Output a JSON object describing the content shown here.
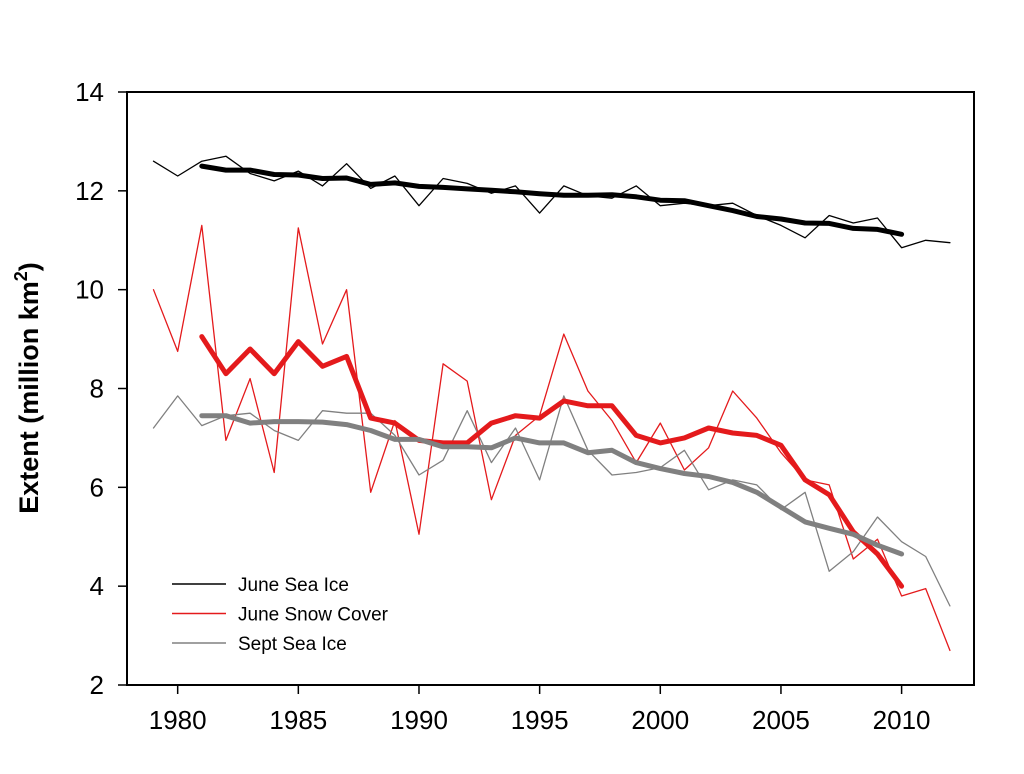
{
  "chart_data": {
    "type": "line",
    "title": "",
    "xlabel": "",
    "ylabel": "Extent  (million km",
    "ylabel_sup": "2",
    "ylabel_close": ")",
    "xlim": [
      1977.9,
      2013.0
    ],
    "ylim": [
      2,
      14
    ],
    "xticks": [
      1980,
      1985,
      1990,
      1995,
      2000,
      2005,
      2010
    ],
    "yticks": [
      2,
      4,
      6,
      8,
      10,
      12,
      14
    ],
    "grid": false,
    "legend_position": "bottom-left",
    "series": [
      {
        "name": "June Sea Ice",
        "color": "#000000",
        "kind": "annual",
        "x": [
          1979,
          1980,
          1981,
          1982,
          1983,
          1984,
          1985,
          1986,
          1987,
          1988,
          1989,
          1990,
          1991,
          1992,
          1993,
          1994,
          1995,
          1996,
          1997,
          1998,
          1999,
          2000,
          2001,
          2002,
          2003,
          2004,
          2005,
          2006,
          2007,
          2008,
          2009,
          2010,
          2011,
          2012
        ],
        "values": [
          12.6,
          12.3,
          12.6,
          12.7,
          12.35,
          12.2,
          12.4,
          12.1,
          12.55,
          12.05,
          12.3,
          11.7,
          12.25,
          12.15,
          11.95,
          12.1,
          11.55,
          12.1,
          11.9,
          11.85,
          12.1,
          11.7,
          11.75,
          11.7,
          11.75,
          11.5,
          11.3,
          11.05,
          11.5,
          11.35,
          11.45,
          10.85,
          11.0,
          10.95
        ]
      },
      {
        "name": "June Snow Cover",
        "color": "#e41a1c",
        "kind": "annual",
        "x": [
          1979,
          1980,
          1981,
          1982,
          1983,
          1984,
          1985,
          1986,
          1987,
          1988,
          1989,
          1990,
          1991,
          1992,
          1993,
          1994,
          1995,
          1996,
          1997,
          1998,
          1999,
          2000,
          2001,
          2002,
          2003,
          2004,
          2005,
          2006,
          2007,
          2008,
          2009,
          2010,
          2011,
          2012
        ],
        "values": [
          10.0,
          8.75,
          11.3,
          6.95,
          8.2,
          6.3,
          11.25,
          8.9,
          10.0,
          5.9,
          7.35,
          5.05,
          8.5,
          8.15,
          5.75,
          7.05,
          7.45,
          9.1,
          7.95,
          7.35,
          6.5,
          7.3,
          6.35,
          6.8,
          7.95,
          7.4,
          6.7,
          6.15,
          6.05,
          4.55,
          4.95,
          3.8,
          3.95,
          2.7
        ]
      },
      {
        "name": "Sept Sea Ice",
        "color": "#808080",
        "kind": "annual",
        "x": [
          1979,
          1980,
          1981,
          1982,
          1983,
          1984,
          1985,
          1986,
          1987,
          1988,
          1989,
          1990,
          1991,
          1992,
          1993,
          1994,
          1995,
          1996,
          1997,
          1998,
          1999,
          2000,
          2001,
          2002,
          2003,
          2004,
          2005,
          2006,
          2007,
          2008,
          2009,
          2010,
          2011,
          2012
        ],
        "values": [
          7.2,
          7.85,
          7.25,
          7.45,
          7.5,
          7.15,
          6.95,
          7.55,
          7.5,
          7.5,
          7.05,
          6.25,
          6.55,
          7.55,
          6.5,
          7.2,
          6.15,
          7.85,
          6.75,
          6.25,
          6.3,
          6.4,
          6.75,
          5.95,
          6.15,
          6.05,
          5.55,
          5.9,
          4.3,
          4.7,
          5.4,
          4.9,
          4.6,
          3.6
        ]
      },
      {
        "name": "",
        "color": "#000000",
        "kind": "smoothed",
        "x": [
          1981,
          1982,
          1983,
          1984,
          1985,
          1986,
          1987,
          1988,
          1989,
          1990,
          1991,
          1992,
          1993,
          1994,
          1995,
          1996,
          1997,
          1998,
          1999,
          2000,
          2001,
          2002,
          2003,
          2004,
          2005,
          2006,
          2007,
          2008,
          2009,
          2010
        ],
        "values": [
          12.5,
          12.42,
          12.42,
          12.33,
          12.32,
          12.25,
          12.26,
          12.13,
          12.16,
          12.09,
          12.07,
          12.04,
          12.01,
          11.98,
          11.94,
          11.91,
          11.91,
          11.92,
          11.88,
          11.81,
          11.8,
          11.7,
          11.6,
          11.48,
          11.43,
          11.35,
          11.34,
          11.24,
          11.22,
          11.12
        ]
      },
      {
        "name": "",
        "color": "#e41a1c",
        "kind": "smoothed",
        "x": [
          1981,
          1982,
          1983,
          1984,
          1985,
          1986,
          1987,
          1988,
          1989,
          1990,
          1991,
          1992,
          1993,
          1994,
          1995,
          1996,
          1997,
          1998,
          1999,
          2000,
          2001,
          2002,
          2003,
          2004,
          2005,
          2006,
          2007,
          2008,
          2009,
          2010
        ],
        "values": [
          9.05,
          8.3,
          8.8,
          8.3,
          8.95,
          8.45,
          8.65,
          7.4,
          7.3,
          6.95,
          6.9,
          6.9,
          7.3,
          7.45,
          7.4,
          7.75,
          7.65,
          7.65,
          7.05,
          6.9,
          7.0,
          7.2,
          7.1,
          7.05,
          6.85,
          6.15,
          5.85,
          5.1,
          4.65,
          4.0
        ]
      },
      {
        "name": "",
        "color": "#808080",
        "kind": "smoothed",
        "x": [
          1981,
          1982,
          1983,
          1984,
          1985,
          1986,
          1987,
          1988,
          1989,
          1990,
          1991,
          1992,
          1993,
          1994,
          1995,
          1996,
          1997,
          1998,
          1999,
          2000,
          2001,
          2002,
          2003,
          2004,
          2005,
          2006,
          2007,
          2008,
          2009,
          2010
        ],
        "values": [
          7.45,
          7.45,
          7.3,
          7.33,
          7.33,
          7.32,
          7.27,
          7.15,
          6.97,
          6.97,
          6.82,
          6.82,
          6.8,
          7.0,
          6.9,
          6.9,
          6.7,
          6.75,
          6.5,
          6.38,
          6.28,
          6.22,
          6.1,
          5.9,
          5.6,
          5.3,
          5.17,
          5.05,
          4.83,
          4.65
        ]
      }
    ]
  }
}
